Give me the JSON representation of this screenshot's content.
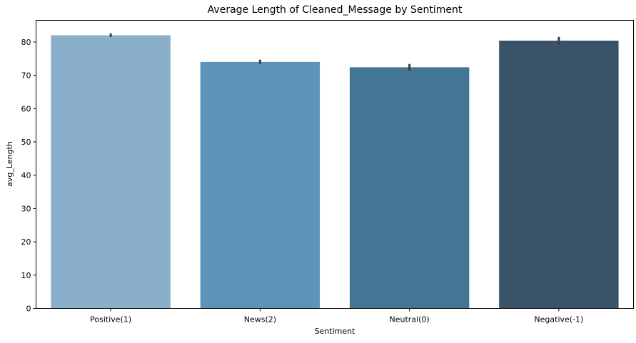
{
  "chart_data": {
    "type": "bar",
    "title": "Average Length of Cleaned_Message by Sentiment",
    "xlabel": "Sentiment",
    "ylabel": "avg_Length",
    "categories": [
      "Positive(1)",
      "News(2)",
      "Neutral(0)",
      "Negative(-1)"
    ],
    "values": [
      82.0,
      74.0,
      72.4,
      80.4
    ],
    "error_bars": [
      [
        81.5,
        82.6
      ],
      [
        73.4,
        74.7
      ],
      [
        71.4,
        73.4
      ],
      [
        79.3,
        81.5
      ]
    ],
    "colors": [
      "#8aafca",
      "#5d93b9",
      "#447595",
      "#3b5368"
    ],
    "ylim": [
      0,
      86.5
    ],
    "yticks": [
      0,
      10,
      20,
      30,
      40,
      50,
      60,
      70,
      80
    ],
    "grid": false
  }
}
